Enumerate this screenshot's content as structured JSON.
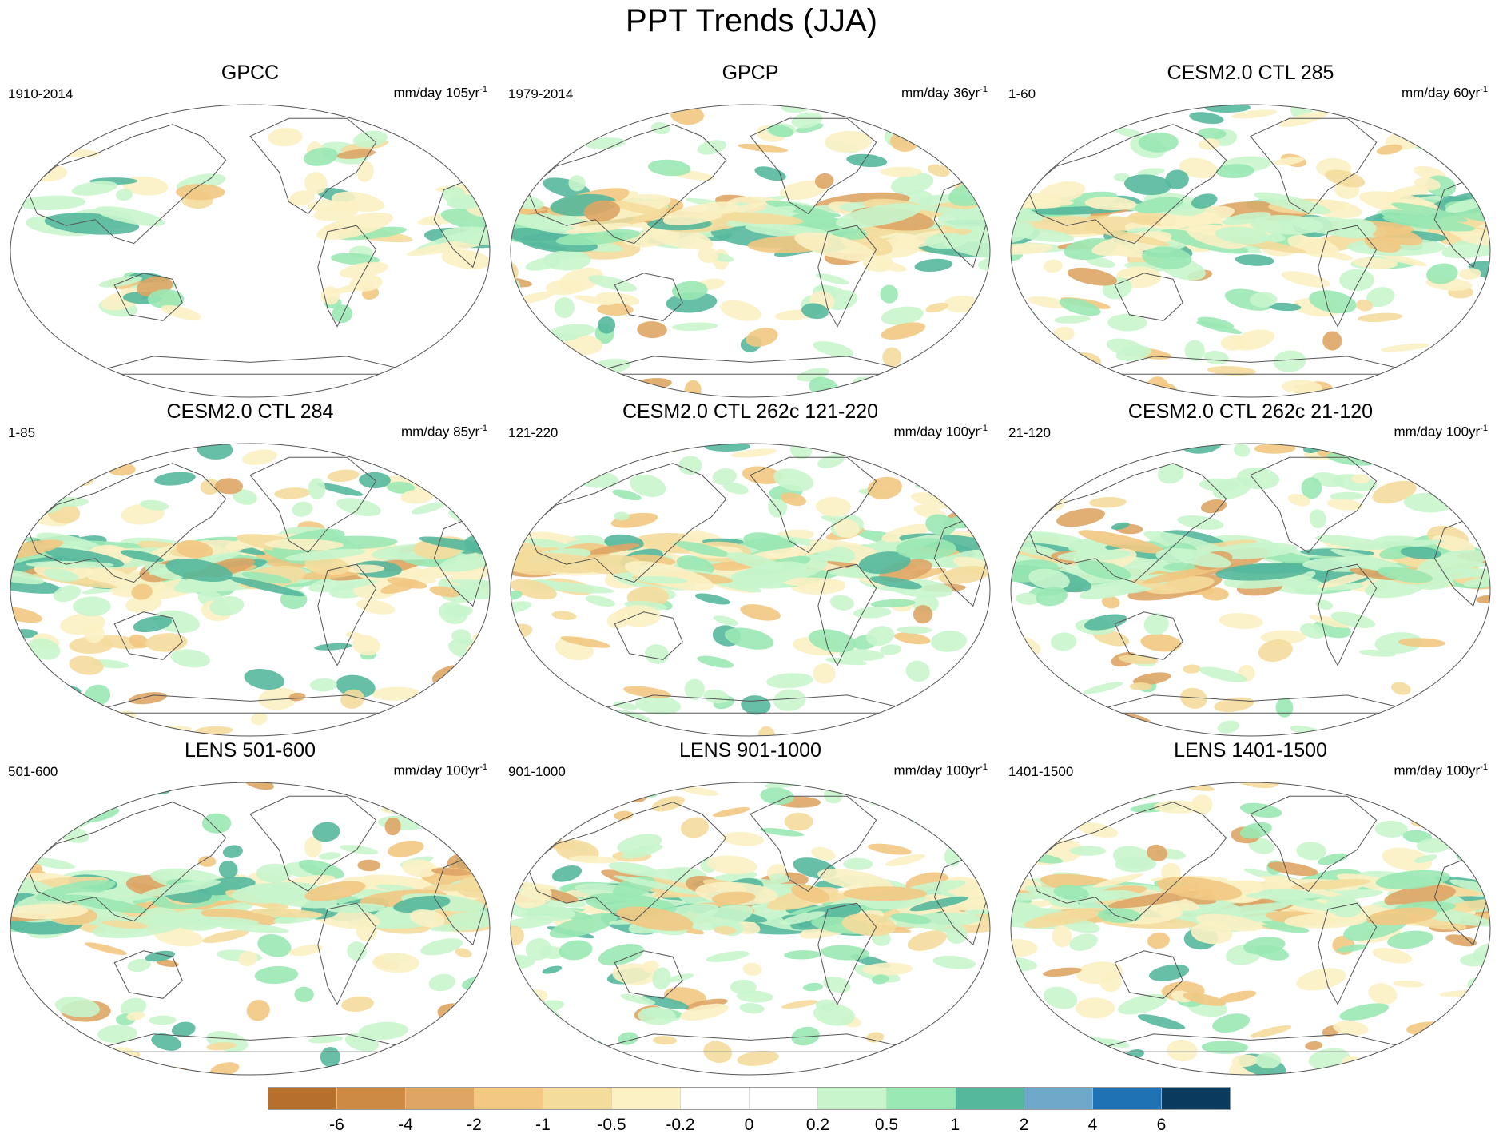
{
  "figure": {
    "title": "PPT Trends (JJA)"
  },
  "panels": [
    {
      "title": "GPCC",
      "period": "1910-2014",
      "units_prefix": "mm/day 105yr",
      "units_exp": "-1",
      "seed": 11,
      "coverage": "land"
    },
    {
      "title": "GPCP",
      "period": "1979-2014",
      "units_prefix": "mm/day 36yr",
      "units_exp": "-1",
      "seed": 23,
      "coverage": "global"
    },
    {
      "title": "CESM2.0 CTL 285",
      "period": "1-60",
      "units_prefix": "mm/day 60yr",
      "units_exp": "-1",
      "seed": 37,
      "coverage": "global"
    },
    {
      "title": "CESM2.0 CTL 284",
      "period": "1-85",
      "units_prefix": "mm/day 85yr",
      "units_exp": "-1",
      "seed": 41,
      "coverage": "global"
    },
    {
      "title": "CESM2.0 CTL 262c 121-220",
      "period": "121-220",
      "units_prefix": "mm/day 100yr",
      "units_exp": "-1",
      "seed": 53,
      "coverage": "global"
    },
    {
      "title": "CESM2.0 CTL 262c 21-120",
      "period": "21-120",
      "units_prefix": "mm/day 100yr",
      "units_exp": "-1",
      "seed": 67,
      "coverage": "global"
    },
    {
      "title": "LENS 501-600",
      "period": "501-600",
      "units_prefix": "mm/day 100yr",
      "units_exp": "-1",
      "seed": 71,
      "coverage": "global"
    },
    {
      "title": "LENS 901-1000",
      "period": "901-1000",
      "units_prefix": "mm/day 100yr",
      "units_exp": "-1",
      "seed": 83,
      "coverage": "global"
    },
    {
      "title": "LENS 1401-1500",
      "period": "1401-1500",
      "units_prefix": "mm/day 100yr",
      "units_exp": "-1",
      "seed": 97,
      "coverage": "global"
    }
  ],
  "colorbar": {
    "levels": [
      "-6",
      "-4",
      "-2",
      "-1",
      "-0.5",
      "-0.2",
      "0",
      "0.2",
      "0.5",
      "1",
      "2",
      "4",
      "6"
    ],
    "colors": [
      "#b5702e",
      "#cc8a45",
      "#dea565",
      "#f2c882",
      "#f4dc9c",
      "#fbf1c4",
      "#ffffff",
      "#ffffff",
      "#c8f5cc",
      "#9ae8b4",
      "#55b89c",
      "#6ea9c9",
      "#1f73b4",
      "#0a3a5e"
    ]
  },
  "colors": {
    "coastline": "#555555",
    "map_border": "#555555"
  }
}
